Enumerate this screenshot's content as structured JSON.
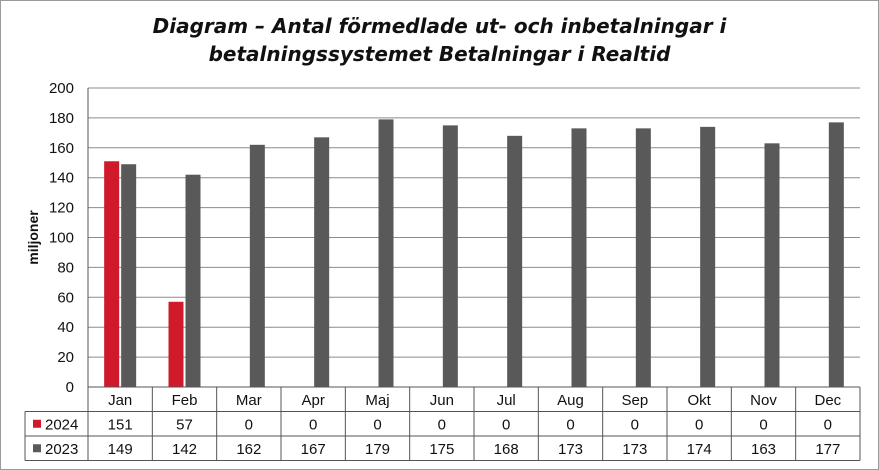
{
  "chart_data": {
    "type": "bar",
    "title_line1": "Diagram – Antal förmedlade ut- och inbetalningar i",
    "title_line2": "betalningssystemet Betalningar i Realtid",
    "ylabel": "miljoner",
    "ylim": [
      0,
      200
    ],
    "yticks": [
      0,
      20,
      40,
      60,
      80,
      100,
      120,
      140,
      160,
      180,
      200
    ],
    "grid": true,
    "legend": "data-table",
    "categories": [
      "Jan",
      "Feb",
      "Mar",
      "Apr",
      "Maj",
      "Jun",
      "Jul",
      "Aug",
      "Sep",
      "Okt",
      "Nov",
      "Dec"
    ],
    "series": [
      {
        "name": "2024",
        "color": "#d0192b",
        "values": [
          151,
          57,
          0,
          0,
          0,
          0,
          0,
          0,
          0,
          0,
          0,
          0
        ]
      },
      {
        "name": "2023",
        "color": "#595959",
        "values": [
          149,
          142,
          162,
          167,
          179,
          175,
          168,
          173,
          173,
          174,
          163,
          177
        ]
      }
    ]
  }
}
